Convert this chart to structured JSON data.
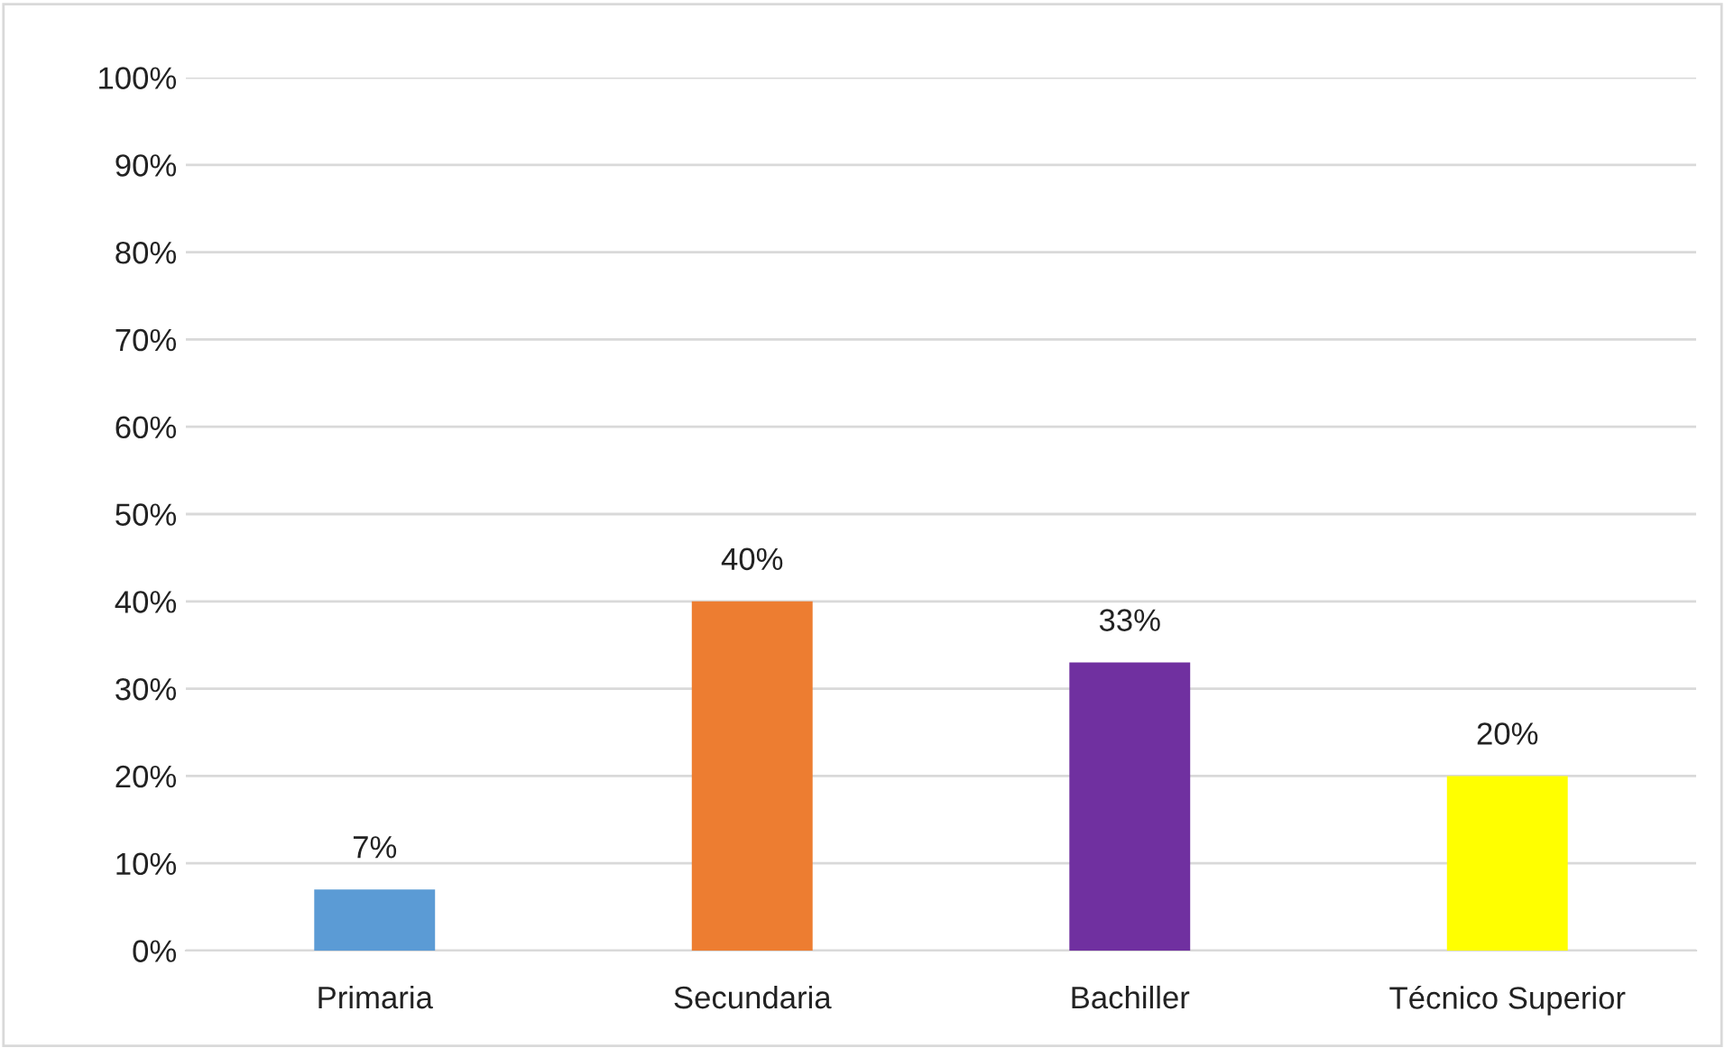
{
  "chart_data": {
    "type": "bar",
    "categories": [
      "Primaria",
      "Secundaria",
      "Bachiller",
      "Técnico Superior"
    ],
    "values": [
      7,
      40,
      33,
      20
    ],
    "colors": [
      "#5b9bd5",
      "#ed7d31",
      "#7030a0",
      "#ffff00"
    ],
    "value_labels": [
      "7%",
      "40%",
      "33%",
      "20%"
    ],
    "ylim": [
      0,
      100
    ],
    "yticks": [
      {
        "value": 0,
        "label": "0%"
      },
      {
        "value": 10,
        "label": "10%"
      },
      {
        "value": 20,
        "label": "20%"
      },
      {
        "value": 30,
        "label": "30%"
      },
      {
        "value": 40,
        "label": "40%"
      },
      {
        "value": 50,
        "label": "50%"
      },
      {
        "value": 60,
        "label": "60%"
      },
      {
        "value": 70,
        "label": "70%"
      },
      {
        "value": 80,
        "label": "80%"
      },
      {
        "value": 90,
        "label": "90%"
      },
      {
        "value": 100,
        "label": "100%"
      }
    ],
    "grid": "y",
    "legend": false
  }
}
